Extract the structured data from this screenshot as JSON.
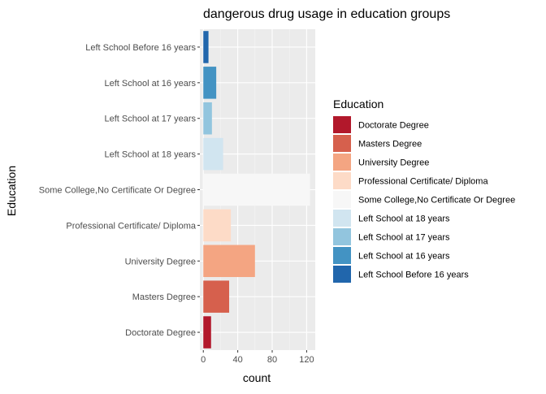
{
  "chart_data": {
    "type": "bar",
    "orientation": "horizontal",
    "title": "dangerous drug usage in education groups",
    "xlabel": "count",
    "ylabel": "Education",
    "xlim": [
      -4,
      130
    ],
    "x_ticks": [
      0,
      40,
      80,
      120
    ],
    "x_tick_labels": [
      "0",
      "40",
      "80",
      "120"
    ],
    "grid": true,
    "legend_position": "right",
    "legend_title": "Education",
    "categories": [
      "Left School Before 16 years",
      "Left School at 16 years",
      "Left School at 17 years",
      "Left School at 18 years",
      "Some College,No Certificate Or Degree",
      "Professional Certificate/ Diploma",
      "University Degree",
      "Masters Degree",
      "Doctorate Degree"
    ],
    "values": [
      6,
      15,
      10,
      23,
      124,
      32,
      60,
      30,
      9
    ],
    "colors": [
      "#2166ac",
      "#4393c3",
      "#92c5de",
      "#d1e5f0",
      "#f7f7f7",
      "#fddbc7",
      "#f4a582",
      "#d6604d",
      "#b2182b"
    ],
    "legend_entries": [
      "Doctorate Degree",
      "Masters Degree",
      "University Degree",
      "Professional Certificate/ Diploma",
      "Some College,No Certificate Or Degree",
      "Left School at 18 years",
      "Left School at 17 years",
      "Left School at 16 years",
      "Left School Before 16 years"
    ],
    "legend_colors": [
      "#b2182b",
      "#d6604d",
      "#f4a582",
      "#fddbc7",
      "#f7f7f7",
      "#d1e5f0",
      "#92c5de",
      "#4393c3",
      "#2166ac"
    ]
  }
}
